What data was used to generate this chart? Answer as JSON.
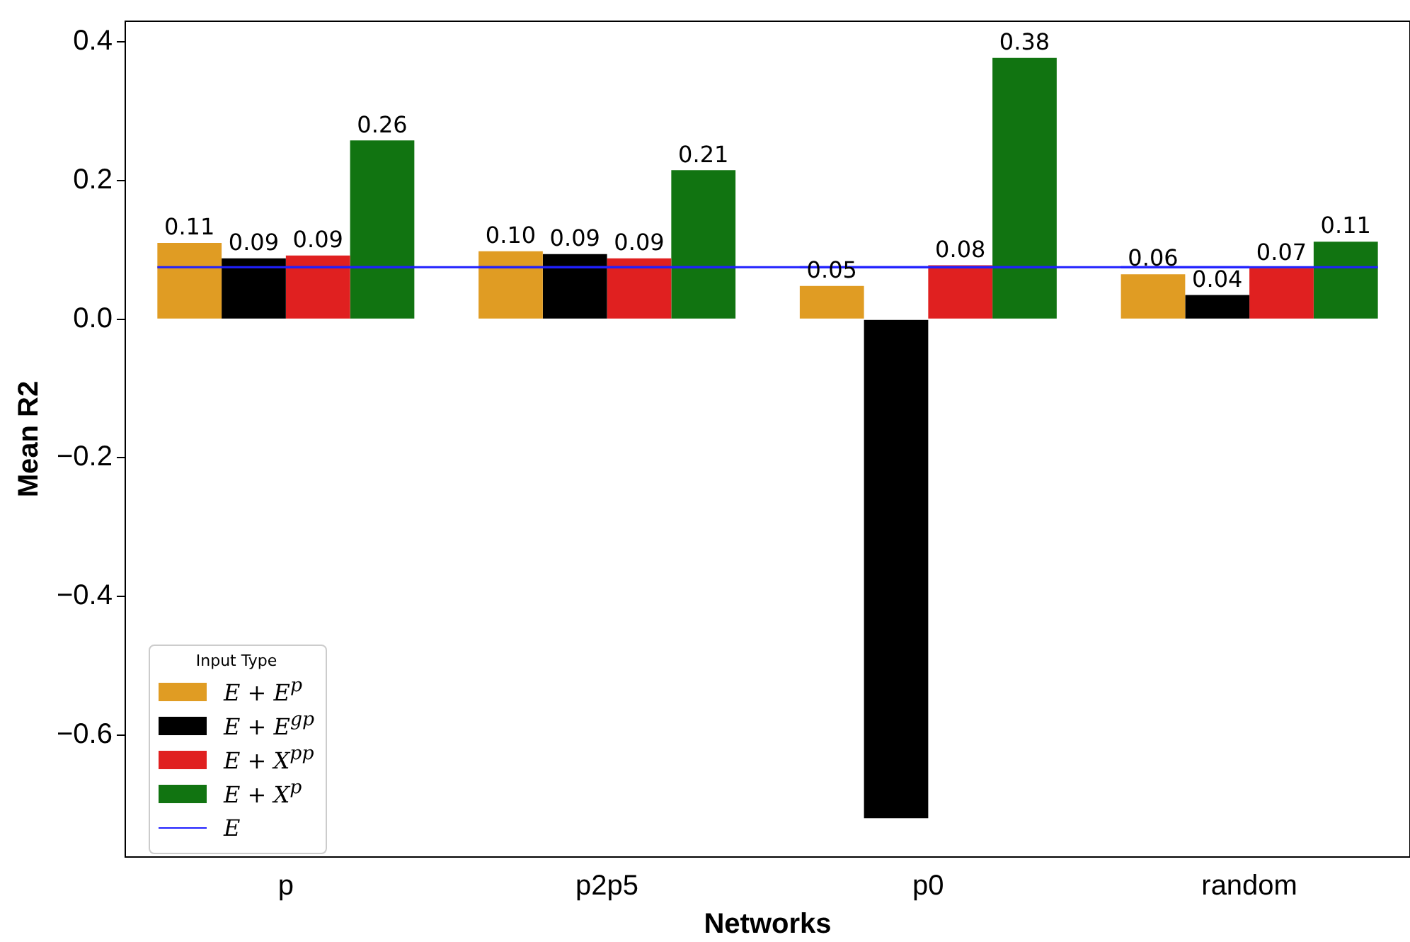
{
  "chart_data": {
    "type": "bar",
    "xlabel": "Networks",
    "ylabel": "Mean R2",
    "categories": [
      "p",
      "p2p5",
      "p0",
      "random"
    ],
    "series": [
      {
        "name": "E + E$^{p}$",
        "color": "#e09c23",
        "values": [
          0.11,
          0.098,
          0.048,
          0.065
        ],
        "value_labels": [
          "0.11",
          "0.10",
          "0.05",
          "0.06"
        ]
      },
      {
        "name": "E + E$^{gp}$",
        "color": "#000000",
        "values": [
          0.088,
          0.094,
          -0.72,
          0.035
        ],
        "value_labels": [
          "0.09",
          "0.09",
          null,
          "0.04"
        ]
      },
      {
        "name": "E + X$^{pp}$",
        "color": "#e02020",
        "values": [
          0.092,
          0.088,
          0.078,
          0.074
        ],
        "value_labels": [
          "0.09",
          "0.09",
          "0.08",
          "0.07"
        ]
      },
      {
        "name": "E + X$^{p}$",
        "color": "#117411",
        "values": [
          0.258,
          0.215,
          0.377,
          0.112
        ],
        "value_labels": [
          "0.26",
          "0.21",
          "0.38",
          "0.11"
        ]
      },
      {
        "name": "E",
        "type": "line",
        "color": "#2020ff",
        "values": [
          0.075,
          0.075,
          0.075,
          0.075
        ]
      }
    ],
    "ylim": [
      -0.776,
      0.43
    ],
    "yticks": [
      {
        "value": -0.6,
        "label": "−0.6"
      },
      {
        "value": -0.4,
        "label": "−0.4"
      },
      {
        "value": -0.2,
        "label": "−0.2"
      },
      {
        "value": 0,
        "label": "0.0"
      },
      {
        "value": 0.2,
        "label": "0.2"
      },
      {
        "value": 0.4,
        "label": "0.4"
      }
    ],
    "grid": false,
    "legend": "bottom left",
    "legend_title": "Input Type"
  }
}
